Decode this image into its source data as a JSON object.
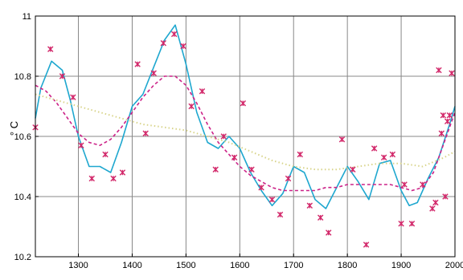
{
  "chart_data": {
    "type": "line",
    "title": "",
    "xlabel": "",
    "ylabel": "° C",
    "xlim": [
      1220,
      2000
    ],
    "ylim": [
      10.2,
      11.0
    ],
    "xticks": [
      1300,
      1400,
      1500,
      1600,
      1700,
      1800,
      1900,
      2000
    ],
    "yticks": [
      10.2,
      10.4,
      10.6,
      10.8,
      11
    ],
    "xtick_labels": [
      "1300",
      "1400",
      "1500",
      "1600",
      "1700",
      "1800",
      "1900",
      "2000"
    ],
    "ytick_labels": [
      "10.2",
      "10.4",
      "10.6",
      "10.8",
      "11"
    ],
    "grid": true,
    "series": [
      {
        "color": "#1ea7cf",
        "style": "solid",
        "x": [
          1220,
          1230,
          1250,
          1270,
          1285,
          1300,
          1320,
          1340,
          1360,
          1380,
          1400,
          1420,
          1440,
          1460,
          1480,
          1500,
          1520,
          1540,
          1560,
          1580,
          1600,
          1620,
          1640,
          1660,
          1680,
          1700,
          1720,
          1740,
          1760,
          1780,
          1800,
          1820,
          1840,
          1860,
          1880,
          1900,
          1915,
          1930,
          1950,
          1970,
          1990,
          2000
        ],
        "y": [
          10.66,
          10.76,
          10.85,
          10.82,
          10.72,
          10.6,
          10.5,
          10.5,
          10.48,
          10.58,
          10.7,
          10.74,
          10.83,
          10.92,
          10.97,
          10.84,
          10.68,
          10.58,
          10.56,
          10.6,
          10.56,
          10.48,
          10.42,
          10.37,
          10.41,
          10.5,
          10.48,
          10.39,
          10.36,
          10.43,
          10.5,
          10.45,
          10.39,
          10.51,
          10.52,
          10.42,
          10.37,
          10.38,
          10.46,
          10.53,
          10.64,
          10.7
        ]
      },
      {
        "color": "#cc2288",
        "style": "dashed",
        "x": [
          1220,
          1240,
          1260,
          1280,
          1300,
          1320,
          1340,
          1360,
          1380,
          1400,
          1420,
          1440,
          1460,
          1480,
          1500,
          1520,
          1540,
          1560,
          1580,
          1600,
          1620,
          1640,
          1660,
          1680,
          1700,
          1720,
          1740,
          1760,
          1780,
          1800,
          1820,
          1840,
          1860,
          1880,
          1900,
          1920,
          1940,
          1960,
          1980,
          2000
        ],
        "y": [
          10.77,
          10.75,
          10.71,
          10.66,
          10.61,
          10.58,
          10.57,
          10.59,
          10.63,
          10.68,
          10.73,
          10.77,
          10.8,
          10.8,
          10.77,
          10.71,
          10.64,
          10.58,
          10.54,
          10.5,
          10.47,
          10.45,
          10.43,
          10.42,
          10.42,
          10.42,
          10.42,
          10.43,
          10.43,
          10.44,
          10.44,
          10.44,
          10.44,
          10.44,
          10.43,
          10.42,
          10.43,
          10.48,
          10.58,
          10.68
        ]
      },
      {
        "color": "#d8d48a",
        "style": "dotted",
        "x": [
          1220,
          1260,
          1300,
          1340,
          1380,
          1420,
          1460,
          1500,
          1540,
          1580,
          1620,
          1660,
          1700,
          1740,
          1780,
          1820,
          1860,
          1900,
          1940,
          1980,
          2000
        ],
        "y": [
          10.74,
          10.72,
          10.7,
          10.68,
          10.66,
          10.64,
          10.63,
          10.62,
          10.6,
          10.58,
          10.55,
          10.52,
          10.5,
          10.49,
          10.49,
          10.5,
          10.51,
          10.51,
          10.5,
          10.53,
          10.55
        ]
      }
    ],
    "scatter": {
      "color": "#d2286a",
      "marker": "*",
      "x": [
        1220,
        1248,
        1270,
        1290,
        1305,
        1325,
        1350,
        1365,
        1382,
        1410,
        1425,
        1440,
        1458,
        1478,
        1495,
        1510,
        1530,
        1555,
        1570,
        1590,
        1606,
        1622,
        1640,
        1660,
        1675,
        1690,
        1712,
        1730,
        1750,
        1765,
        1790,
        1810,
        1835,
        1850,
        1868,
        1884,
        1900,
        1906,
        1920,
        1940,
        1958,
        1964,
        1970,
        1975,
        1978,
        1982,
        1986,
        1990,
        1994
      ],
      "y": [
        10.63,
        10.89,
        10.8,
        10.73,
        10.57,
        10.46,
        10.54,
        10.46,
        10.48,
        10.84,
        10.61,
        10.81,
        10.91,
        10.94,
        10.9,
        10.7,
        10.75,
        10.49,
        10.6,
        10.53,
        10.71,
        10.49,
        10.43,
        10.39,
        10.34,
        10.46,
        10.54,
        10.37,
        10.33,
        10.28,
        10.59,
        10.49,
        10.24,
        10.56,
        10.53,
        10.54,
        10.31,
        10.44,
        10.31,
        10.44,
        10.36,
        10.38,
        10.82,
        10.61,
        10.67,
        10.4,
        10.65,
        10.67,
        10.81
      ]
    }
  }
}
